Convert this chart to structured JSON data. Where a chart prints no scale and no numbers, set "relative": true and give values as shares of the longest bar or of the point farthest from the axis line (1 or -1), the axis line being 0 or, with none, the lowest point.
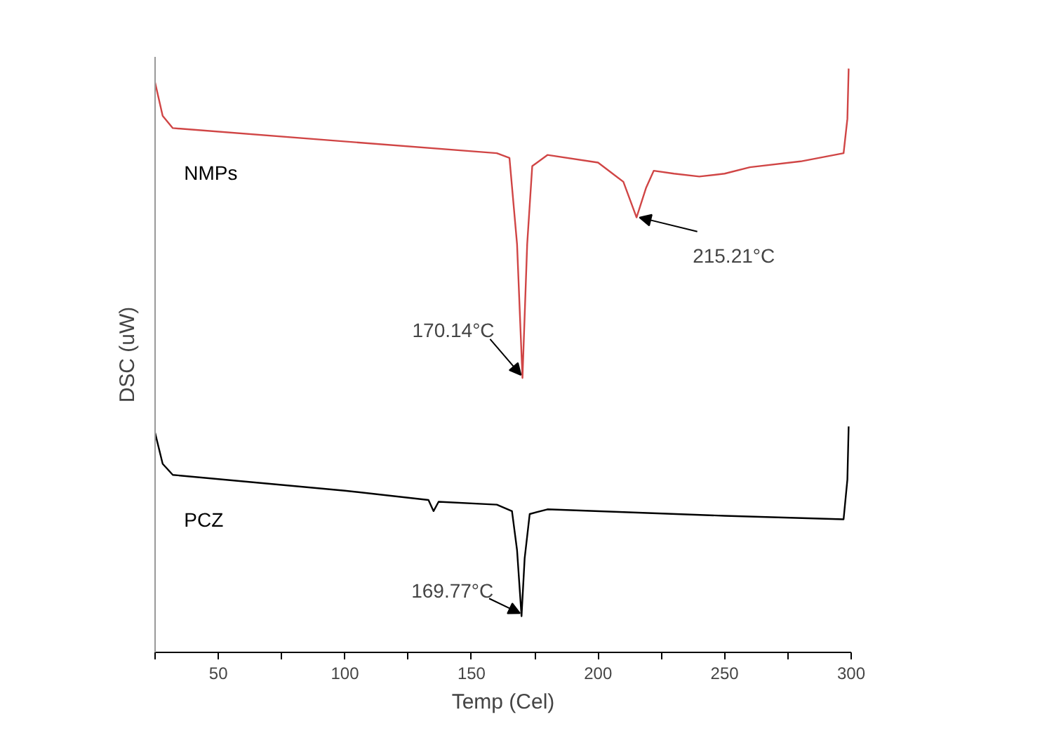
{
  "chart_data": {
    "type": "line",
    "relative": true,
    "xlabel": "Temp (Cel)",
    "ylabel": "DSC (uW)",
    "xlim": [
      25,
      300
    ],
    "xticks": [
      {
        "value": 25,
        "label": null
      },
      50,
      {
        "value": 75,
        "label": null
      },
      100,
      {
        "value": 125,
        "label": null
      },
      150,
      {
        "value": 175,
        "label": null
      },
      200,
      {
        "value": 225,
        "label": null
      },
      250,
      {
        "value": 275,
        "label": null
      },
      300
    ],
    "series": [
      {
        "name": "NMPs",
        "color": "#d04545",
        "x": [
          25,
          28,
          32,
          160,
          165,
          168,
          170.14,
          172,
          174,
          180,
          200,
          210,
          215.21,
          219,
          222,
          230,
          240,
          250,
          260,
          280,
          297,
          298.5,
          299
        ],
        "values": [
          0.976,
          0.919,
          0.898,
          0.855,
          0.847,
          0.699,
          0.47,
          0.699,
          0.833,
          0.852,
          0.839,
          0.806,
          0.745,
          0.796,
          0.825,
          0.82,
          0.815,
          0.82,
          0.831,
          0.841,
          0.855,
          0.914,
          1.0
        ]
      },
      {
        "name": "PCZ",
        "color": "#000000",
        "x": [
          25,
          28,
          32,
          100,
          133,
          135,
          137,
          160,
          166,
          168,
          169.77,
          171,
          173,
          180,
          250,
          297,
          298.5,
          299
        ],
        "values": [
          0.376,
          0.323,
          0.304,
          0.277,
          0.261,
          0.242,
          0.258,
          0.253,
          0.242,
          0.175,
          0.062,
          0.161,
          0.237,
          0.245,
          0.234,
          0.228,
          0.296,
          0.387
        ]
      }
    ],
    "annotations": [
      {
        "text": "170.14°C",
        "x": 170.14,
        "y": 0.47
      },
      {
        "text": "215.21°C",
        "x": 215.21,
        "y": 0.745
      },
      {
        "text": "169.77°C",
        "x": 169.77,
        "y": 0.062
      }
    ]
  }
}
